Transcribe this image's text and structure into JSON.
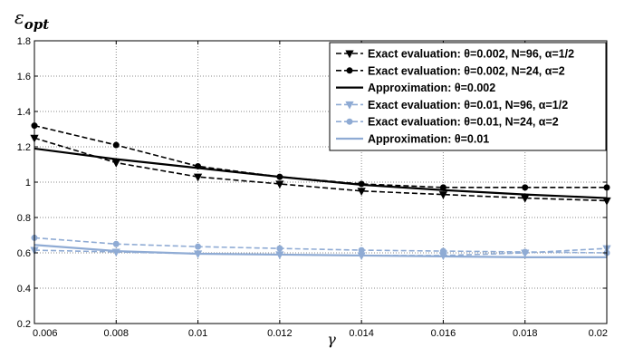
{
  "chart_data": {
    "type": "line",
    "ylabel_main": "ε",
    "ylabel_sub": "opt",
    "xlabel": "γ",
    "xlim": [
      0.006,
      0.02
    ],
    "ylim": [
      0.2,
      1.8
    ],
    "xticks": [
      0.006,
      0.008,
      0.01,
      0.012,
      0.014,
      0.016,
      0.018,
      0.02
    ],
    "xtick_labels": [
      "0.006",
      "0.008",
      "0.01",
      "0.012",
      "0.014",
      "0.016",
      "0.018",
      "0.02"
    ],
    "yticks": [
      0.2,
      0.4,
      0.6,
      0.8,
      1.0,
      1.2,
      1.4,
      1.6,
      1.8
    ],
    "ytick_labels": [
      "0.2",
      "0.4",
      "0.6",
      "0.8",
      "1",
      "1.2",
      "1.4",
      "1.6",
      "1.8"
    ],
    "grid": true,
    "legend_position": "top-right",
    "x": [
      0.006,
      0.008,
      0.01,
      0.012,
      0.014,
      0.016,
      0.018,
      0.02
    ],
    "series": [
      {
        "name": "Exact evaluation: θ=0.002, N=96, α=1/2",
        "color": "#000000",
        "dash": true,
        "marker": "triangle-down",
        "values": [
          1.25,
          1.11,
          1.03,
          0.99,
          0.95,
          0.93,
          0.91,
          0.895
        ]
      },
      {
        "name": "Exact evaluation: θ=0.002, N=24, α=2",
        "color": "#000000",
        "dash": true,
        "marker": "circle",
        "values": [
          1.32,
          1.21,
          1.09,
          1.03,
          0.99,
          0.97,
          0.97,
          0.97
        ]
      },
      {
        "name": "Approximation:   θ=0.002",
        "color": "#000000",
        "dash": false,
        "marker": "none",
        "values": [
          1.19,
          1.13,
          1.08,
          1.03,
          0.985,
          0.955,
          0.93,
          0.91
        ]
      },
      {
        "name": "Exact evaluation: θ=0.01, N=96, α=1/2",
        "color": "#8fabd4",
        "dash": true,
        "marker": "triangle-down",
        "values": [
          0.615,
          0.605,
          0.595,
          0.59,
          0.585,
          0.585,
          0.6,
          0.625
        ]
      },
      {
        "name": "Exact evaluation: θ=0.01, N=24, α=2",
        "color": "#8fabd4",
        "dash": true,
        "marker": "circle",
        "values": [
          0.685,
          0.65,
          0.635,
          0.625,
          0.615,
          0.61,
          0.605,
          0.6
        ]
      },
      {
        "name": "Approximation:   θ=0.01",
        "color": "#8fabd4",
        "dash": false,
        "marker": "none",
        "values": [
          0.645,
          0.61,
          0.595,
          0.59,
          0.585,
          0.58,
          0.575,
          0.575
        ]
      }
    ]
  }
}
